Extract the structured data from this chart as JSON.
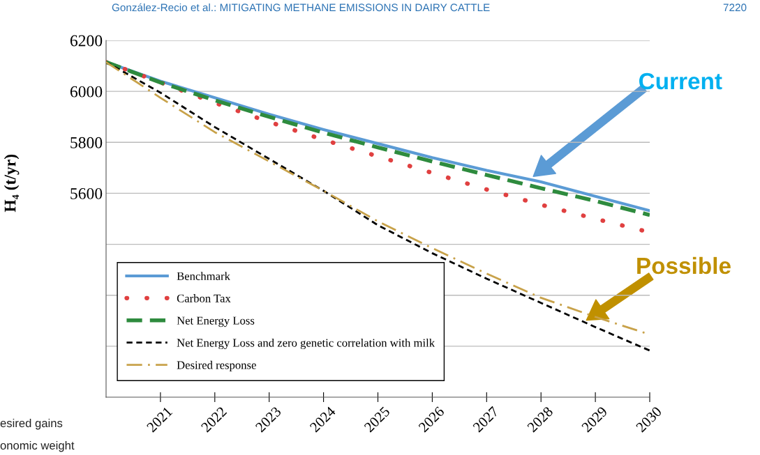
{
  "chart_data": {
    "type": "line",
    "x": [
      2020,
      2021,
      2022,
      2023,
      2024,
      2025,
      2026,
      2027,
      2028,
      2029,
      2030
    ],
    "series": [
      {
        "name": "Benchmark",
        "color": "#5b9bd5",
        "line_style": "solid",
        "values": [
          6115,
          6040,
          5975,
          5910,
          5850,
          5795,
          5740,
          5690,
          5645,
          5588,
          5532
        ]
      },
      {
        "name": "Carbon Tax",
        "color": "#e04040",
        "line_style": "dotted",
        "values": [
          6115,
          6035,
          5955,
          5880,
          5810,
          5745,
          5680,
          5615,
          5555,
          5500,
          5447
        ]
      },
      {
        "name": "Net Energy Loss",
        "color": "#2e8b3e",
        "line_style": "dashed",
        "values": [
          6115,
          6035,
          5965,
          5900,
          5838,
          5780,
          5725,
          5672,
          5620,
          5570,
          5515
        ]
      },
      {
        "name": "Net Energy Loss and zero genetic correlation with milk",
        "color": "#000000",
        "line_style": "dashed",
        "values": [
          6115,
          5995,
          5860,
          5735,
          5610,
          5475,
          5365,
          5265,
          5170,
          5075,
          4983
        ]
      },
      {
        "name": "Desired response",
        "color": "#c8a24a",
        "line_style": "dashdot",
        "values": [
          6115,
          5975,
          5840,
          5725,
          5610,
          5490,
          5385,
          5285,
          5190,
          5115,
          5046
        ]
      }
    ],
    "ylabel": "H₄ (t/yr)",
    "xlim": [
      2020,
      2030
    ],
    "xticks": [
      2021,
      2022,
      2023,
      2024,
      2025,
      2026,
      2027,
      2028,
      2029,
      2030
    ],
    "ylim": [
      4800,
      6200
    ],
    "yticks": [
      6200,
      6000,
      5800,
      5600,
      {
        "value": 5400,
        "label": null
      },
      {
        "value": 5200,
        "label": null
      },
      {
        "value": 5000,
        "label": null
      }
    ],
    "grid": "y",
    "legend": "bottom left",
    "annotations": [
      "González-Recio et al.: MITIGATING METHANE EMISSIONS IN DAIRY CATTLE",
      "7220",
      "esired gains",
      "onomic weight",
      "Current",
      "Possible"
    ]
  }
}
